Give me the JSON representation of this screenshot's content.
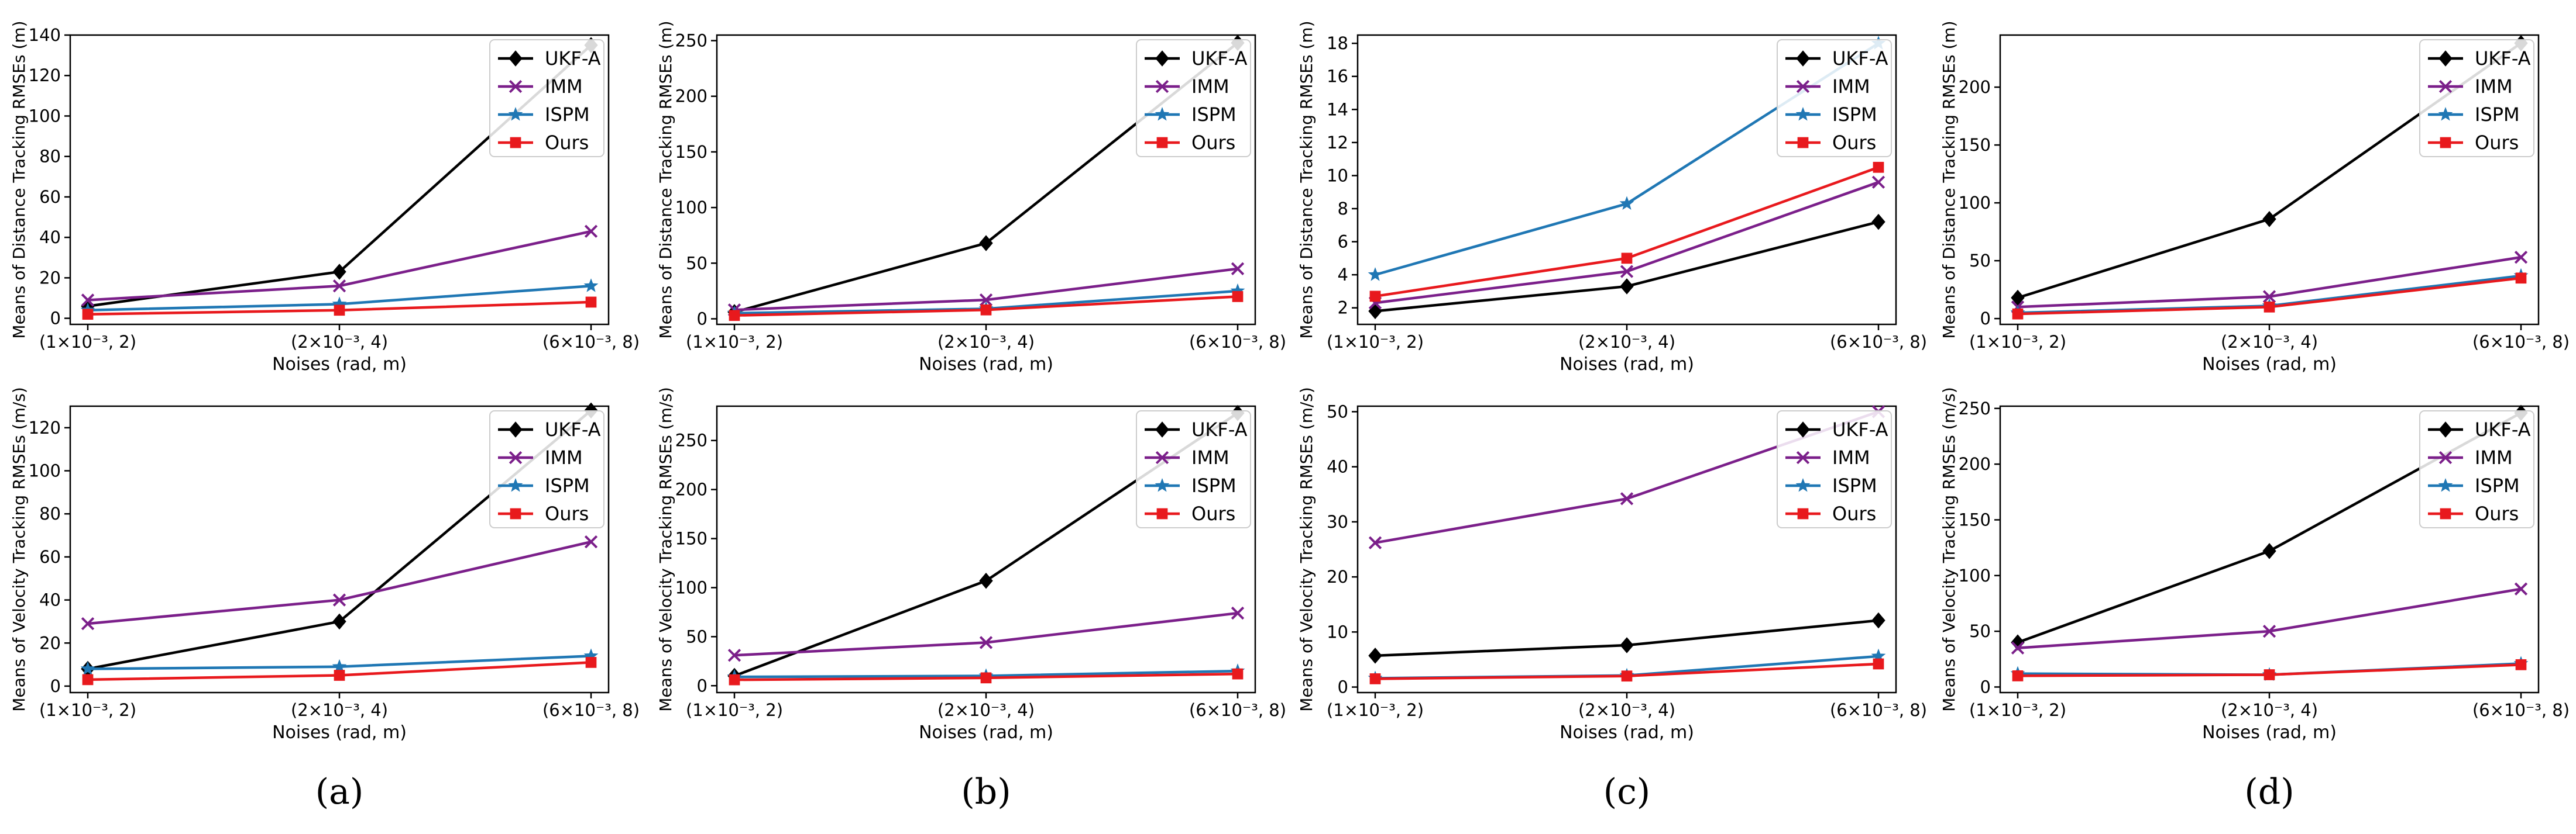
{
  "figure": {
    "x_tick_labels": [
      "(1×10⁻³, 2)",
      "(2×10⁻³, 4)",
      "(6×10⁻³, 8)"
    ],
    "series_styles": [
      {
        "name": "UKF-A",
        "color": "#000000",
        "marker": "diamond"
      },
      {
        "name": "IMM",
        "color": "#7b1f8a",
        "marker": "x"
      },
      {
        "name": "ISPM",
        "color": "#1f77b4",
        "marker": "star"
      },
      {
        "name": "Ours",
        "color": "#e8191d",
        "marker": "square"
      }
    ],
    "captions": [
      "(a)",
      "(b)",
      "(c)",
      "(d)"
    ]
  },
  "chart_data": [
    {
      "type": "line",
      "panel": "a",
      "row": "distance",
      "title": "",
      "xlabel": "Noises (rad, m)",
      "ylabel": "Means of Distance Tracking RMSEs (m)",
      "categories": [
        "(1×10⁻³, 2)",
        "(2×10⁻³, 4)",
        "(6×10⁻³, 8)"
      ],
      "ylim": [
        -3,
        140
      ],
      "yticks": [
        0,
        20,
        40,
        60,
        80,
        100,
        120,
        140
      ],
      "legend": "top-right",
      "series": [
        {
          "name": "UKF-A",
          "values": [
            6,
            23,
            135
          ]
        },
        {
          "name": "IMM",
          "values": [
            9,
            16,
            43
          ]
        },
        {
          "name": "ISPM",
          "values": [
            4,
            7,
            16
          ]
        },
        {
          "name": "Ours",
          "values": [
            2,
            4,
            8
          ]
        }
      ]
    },
    {
      "type": "line",
      "panel": "b",
      "row": "distance",
      "title": "",
      "xlabel": "Noises (rad, m)",
      "ylabel": "Means of Distance Tracking RMSEs (m)",
      "categories": [
        "(1×10⁻³, 2)",
        "(2×10⁻³, 4)",
        "(6×10⁻³, 8)"
      ],
      "ylim": [
        -5,
        255
      ],
      "yticks": [
        0,
        50,
        100,
        150,
        200,
        250
      ],
      "legend": "top-right",
      "series": [
        {
          "name": "UKF-A",
          "values": [
            6,
            68,
            248
          ]
        },
        {
          "name": "IMM",
          "values": [
            8,
            17,
            45
          ]
        },
        {
          "name": "ISPM",
          "values": [
            5,
            9,
            25
          ]
        },
        {
          "name": "Ours",
          "values": [
            3,
            8,
            20
          ]
        }
      ]
    },
    {
      "type": "line",
      "panel": "c",
      "row": "distance",
      "title": "",
      "xlabel": "Noises (rad, m)",
      "ylabel": "Means of Distance Tracking RMSEs (m)",
      "categories": [
        "(1×10⁻³, 2)",
        "(2×10⁻³, 4)",
        "(6×10⁻³, 8)"
      ],
      "ylim": [
        1,
        18.5
      ],
      "yticks": [
        2,
        4,
        6,
        8,
        10,
        12,
        14,
        16,
        18
      ],
      "legend": "top-right",
      "series": [
        {
          "name": "UKF-A",
          "values": [
            1.8,
            3.3,
            7.2
          ]
        },
        {
          "name": "IMM",
          "values": [
            2.3,
            4.2,
            9.6
          ]
        },
        {
          "name": "ISPM",
          "values": [
            4.0,
            8.3,
            18.0
          ]
        },
        {
          "name": "Ours",
          "values": [
            2.7,
            5.0,
            10.5
          ]
        }
      ]
    },
    {
      "type": "line",
      "panel": "d",
      "row": "distance",
      "title": "",
      "xlabel": "Noises (rad, m)",
      "ylabel": "Means of Distance Tracking RMSEs (m)",
      "categories": [
        "(1×10⁻³, 2)",
        "(2×10⁻³, 4)",
        "(6×10⁻³, 8)"
      ],
      "ylim": [
        -5,
        245
      ],
      "yticks": [
        0,
        50,
        100,
        150,
        200
      ],
      "legend": "top-right",
      "series": [
        {
          "name": "UKF-A",
          "values": [
            18,
            86,
            238
          ]
        },
        {
          "name": "IMM",
          "values": [
            10,
            19,
            53
          ]
        },
        {
          "name": "ISPM",
          "values": [
            5,
            11,
            37
          ]
        },
        {
          "name": "Ours",
          "values": [
            4,
            10,
            35
          ]
        }
      ]
    },
    {
      "type": "line",
      "panel": "a",
      "row": "velocity",
      "title": "",
      "xlabel": "Noises (rad, m)",
      "ylabel": "Means of Velocity Tracking RMSEs (m/s)",
      "categories": [
        "(1×10⁻³, 2)",
        "(2×10⁻³, 4)",
        "(6×10⁻³, 8)"
      ],
      "ylim": [
        -3,
        130
      ],
      "yticks": [
        0,
        20,
        40,
        60,
        80,
        100,
        120
      ],
      "legend": "top-right",
      "series": [
        {
          "name": "UKF-A",
          "values": [
            8,
            30,
            128
          ]
        },
        {
          "name": "IMM",
          "values": [
            29,
            40,
            67
          ]
        },
        {
          "name": "ISPM",
          "values": [
            8,
            9,
            14
          ]
        },
        {
          "name": "Ours",
          "values": [
            3,
            5,
            11
          ]
        }
      ]
    },
    {
      "type": "line",
      "panel": "b",
      "row": "velocity",
      "title": "",
      "xlabel": "Noises (rad, m)",
      "ylabel": "Means of Velocity Tracking RMSEs (m/s)",
      "categories": [
        "(1×10⁻³, 2)",
        "(2×10⁻³, 4)",
        "(6×10⁻³, 8)"
      ],
      "ylim": [
        -7,
        285
      ],
      "yticks": [
        0,
        50,
        100,
        150,
        200,
        250
      ],
      "legend": "top-right",
      "series": [
        {
          "name": "UKF-A",
          "values": [
            10,
            107,
            278
          ]
        },
        {
          "name": "IMM",
          "values": [
            31,
            44,
            74
          ]
        },
        {
          "name": "ISPM",
          "values": [
            9,
            10,
            15
          ]
        },
        {
          "name": "Ours",
          "values": [
            6,
            8,
            12
          ]
        }
      ]
    },
    {
      "type": "line",
      "panel": "c",
      "row": "velocity",
      "title": "",
      "xlabel": "Noises (rad, m)",
      "ylabel": "Means of Velocity Tracking RMSEs (m/s)",
      "categories": [
        "(1×10⁻³, 2)",
        "(2×10⁻³, 4)",
        "(6×10⁻³, 8)"
      ],
      "ylim": [
        -1,
        51
      ],
      "yticks": [
        0,
        10,
        20,
        30,
        40,
        50
      ],
      "legend": "top-right",
      "series": [
        {
          "name": "UKF-A",
          "values": [
            5.7,
            7.6,
            12.1
          ]
        },
        {
          "name": "IMM",
          "values": [
            26.2,
            34.2,
            50
          ]
        },
        {
          "name": "ISPM",
          "values": [
            1.6,
            2.1,
            5.6
          ]
        },
        {
          "name": "Ours",
          "values": [
            1.5,
            2.0,
            4.2
          ]
        }
      ]
    },
    {
      "type": "line",
      "panel": "d",
      "row": "velocity",
      "title": "",
      "xlabel": "Noises (rad, m)",
      "ylabel": "Means of Velocity Tracking RMSEs (m/s)",
      "categories": [
        "(1×10⁻³, 2)",
        "(2×10⁻³, 4)",
        "(6×10⁻³, 8)"
      ],
      "ylim": [
        -5,
        252
      ],
      "yticks": [
        0,
        50,
        100,
        150,
        200,
        250
      ],
      "legend": "top-right",
      "series": [
        {
          "name": "UKF-A",
          "values": [
            40,
            122,
            246
          ]
        },
        {
          "name": "IMM",
          "values": [
            35,
            50,
            88
          ]
        },
        {
          "name": "ISPM",
          "values": [
            12,
            11,
            21
          ]
        },
        {
          "name": "Ours",
          "values": [
            10,
            11,
            20
          ]
        }
      ]
    }
  ]
}
